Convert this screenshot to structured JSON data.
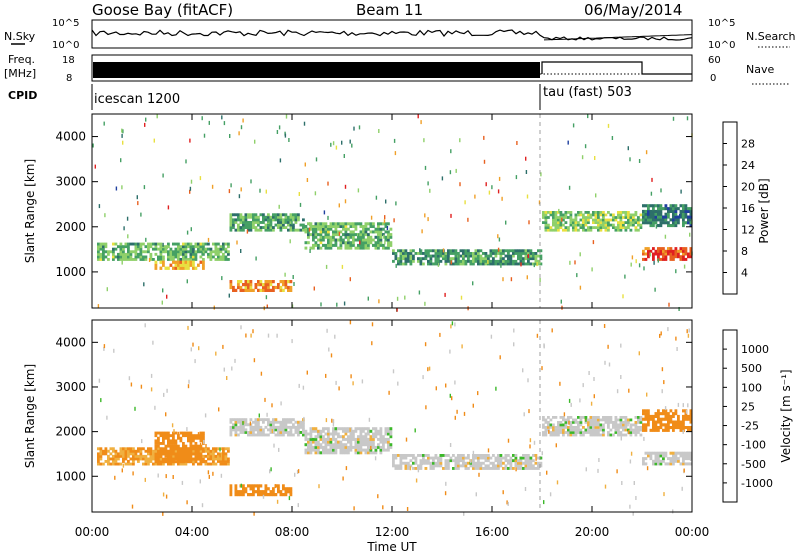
{
  "header": {
    "title": "Goose Bay (fitACF)",
    "beam": "Beam 11",
    "date": "06/May/2014"
  },
  "top_panels": {
    "nsky_label": "N.Sky",
    "nsky_ticks": [
      "10^5",
      "10^0"
    ],
    "nsearch_label": "N.Search",
    "nsearch_ticks": [
      "10^5",
      "10^0"
    ],
    "freq_label": "Freq.",
    "freq_unit": "[MHz]",
    "freq_ticks": [
      "18",
      "8"
    ],
    "nave_label": "Nave",
    "nave_ticks": [
      "60",
      "0"
    ],
    "cpid_label": "CPID",
    "cpid_segments": [
      {
        "name": "icescan 1200",
        "start_hour": 0
      },
      {
        "name": "tau (fast) 503",
        "start_hour": 18
      }
    ]
  },
  "colors": {
    "power_scale": [
      "#1a1ae6",
      "#1f3f9f",
      "#2d6f6a",
      "#45a064",
      "#8fd06a",
      "#e8e040",
      "#f0a028",
      "#e86020",
      "#e02020"
    ],
    "velocity_scale": [
      "#e01818",
      "#f05010",
      "#f08c18",
      "#f0b040",
      "#c8c8c8",
      "#c8c8c8",
      "#3cb82a",
      "#2a8a4a",
      "#2a5a9a",
      "#1e2ea8"
    ]
  },
  "chart_data": [
    {
      "type": "heatmap",
      "name": "power",
      "ylabel": "Slant Range [km]",
      "yticks": [
        "1000",
        "2000",
        "3000",
        "4000"
      ],
      "ylim": [
        200,
        4500
      ],
      "xlim": [
        0,
        24
      ],
      "colorbar_label": "Power [dB]",
      "colorbar_ticks": [
        "28",
        "24",
        "20",
        "16",
        "12",
        "8",
        "4"
      ],
      "colorbar_range": [
        0,
        32
      ],
      "regions": [
        {
          "t0": 0.2,
          "t1": 5.5,
          "r0": 1250,
          "r1": 1650,
          "v": 14
        },
        {
          "t0": 2.5,
          "t1": 4.5,
          "r0": 1050,
          "r1": 1250,
          "v": 22
        },
        {
          "t0": 5.5,
          "t1": 8.0,
          "r0": 560,
          "r1": 820,
          "v": 24
        },
        {
          "t0": 5.5,
          "t1": 8.5,
          "r0": 1900,
          "r1": 2300,
          "v": 13
        },
        {
          "t0": 8.5,
          "t1": 12.0,
          "r0": 1500,
          "r1": 2100,
          "v": 14
        },
        {
          "t0": 12.0,
          "t1": 18.0,
          "r0": 1150,
          "r1": 1500,
          "v": 12
        },
        {
          "t0": 18.0,
          "t1": 22.0,
          "r0": 1900,
          "r1": 2350,
          "v": 16
        },
        {
          "t0": 22.0,
          "t1": 24.0,
          "r0": 1250,
          "r1": 1550,
          "v": 28
        },
        {
          "t0": 22.0,
          "t1": 24.0,
          "r0": 2000,
          "r1": 2500,
          "v": 10
        }
      ]
    },
    {
      "type": "heatmap",
      "name": "velocity",
      "ylabel": "Slant Range [km]",
      "yticks": [
        "1000",
        "2000",
        "3000",
        "4000"
      ],
      "ylim": [
        200,
        4500
      ],
      "xlim": [
        0,
        24
      ],
      "xlabel": "Time UT",
      "xticks": [
        "00:00",
        "04:00",
        "08:00",
        "12:00",
        "16:00",
        "20:00",
        "00:00"
      ],
      "colorbar_label": "Velocity [m s⁻¹]",
      "colorbar_ticks": [
        "1000",
        "500",
        "100",
        "25",
        "-25",
        "-100",
        "-500",
        "-1000"
      ],
      "regions": [
        {
          "t0": 0.2,
          "t1": 5.5,
          "r0": 1250,
          "r1": 1650,
          "v": -100
        },
        {
          "t0": 2.5,
          "t1": 4.5,
          "r0": 1300,
          "r1": 2000,
          "v": -300
        },
        {
          "t0": 5.5,
          "t1": 8.0,
          "r0": 560,
          "r1": 820,
          "v": -400
        },
        {
          "t0": 5.5,
          "t1": 8.5,
          "r0": 1900,
          "r1": 2300,
          "v": 0
        },
        {
          "t0": 8.5,
          "t1": 12.0,
          "r0": 1500,
          "r1": 2100,
          "v": 0
        },
        {
          "t0": 12.0,
          "t1": 18.0,
          "r0": 1150,
          "r1": 1500,
          "v": 0
        },
        {
          "t0": 18.0,
          "t1": 22.0,
          "r0": 1900,
          "r1": 2350,
          "v": 0
        },
        {
          "t0": 22.0,
          "t1": 24.0,
          "r0": 1250,
          "r1": 1550,
          "v": 0
        },
        {
          "t0": 22.0,
          "t1": 24.0,
          "r0": 2000,
          "r1": 2500,
          "v": -150
        }
      ]
    }
  ]
}
